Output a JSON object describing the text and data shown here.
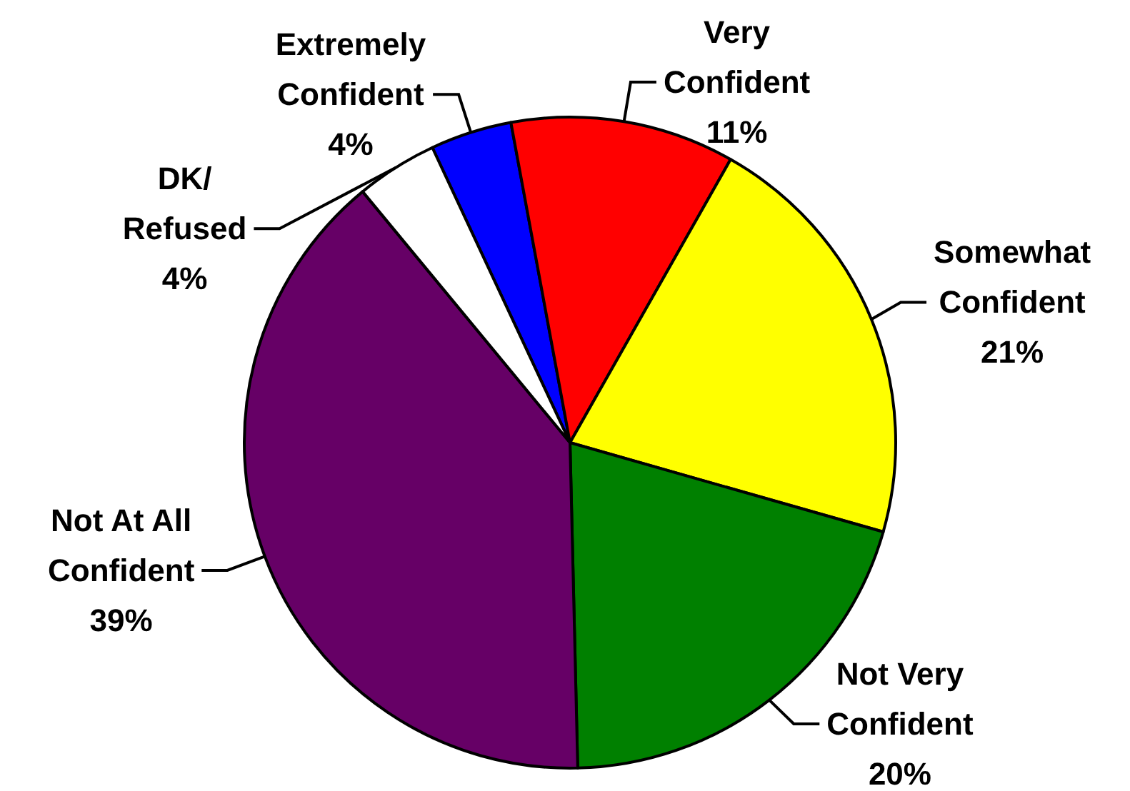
{
  "chart_data": {
    "type": "pie",
    "categories": [
      "Extremely Confident",
      "Very Confident",
      "Somewhat Confident",
      "Not Very Confident",
      "Not At All Confident",
      "DK/Refused"
    ],
    "values": [
      4,
      11,
      21,
      20,
      39,
      4
    ],
    "value_labels": [
      "4%",
      "11%",
      "21%",
      "20%",
      "39%",
      "4%"
    ],
    "colors": [
      "#0000ff",
      "#ff0000",
      "#ffff00",
      "#008000",
      "#660066",
      "#ffffff"
    ],
    "legend": false
  }
}
